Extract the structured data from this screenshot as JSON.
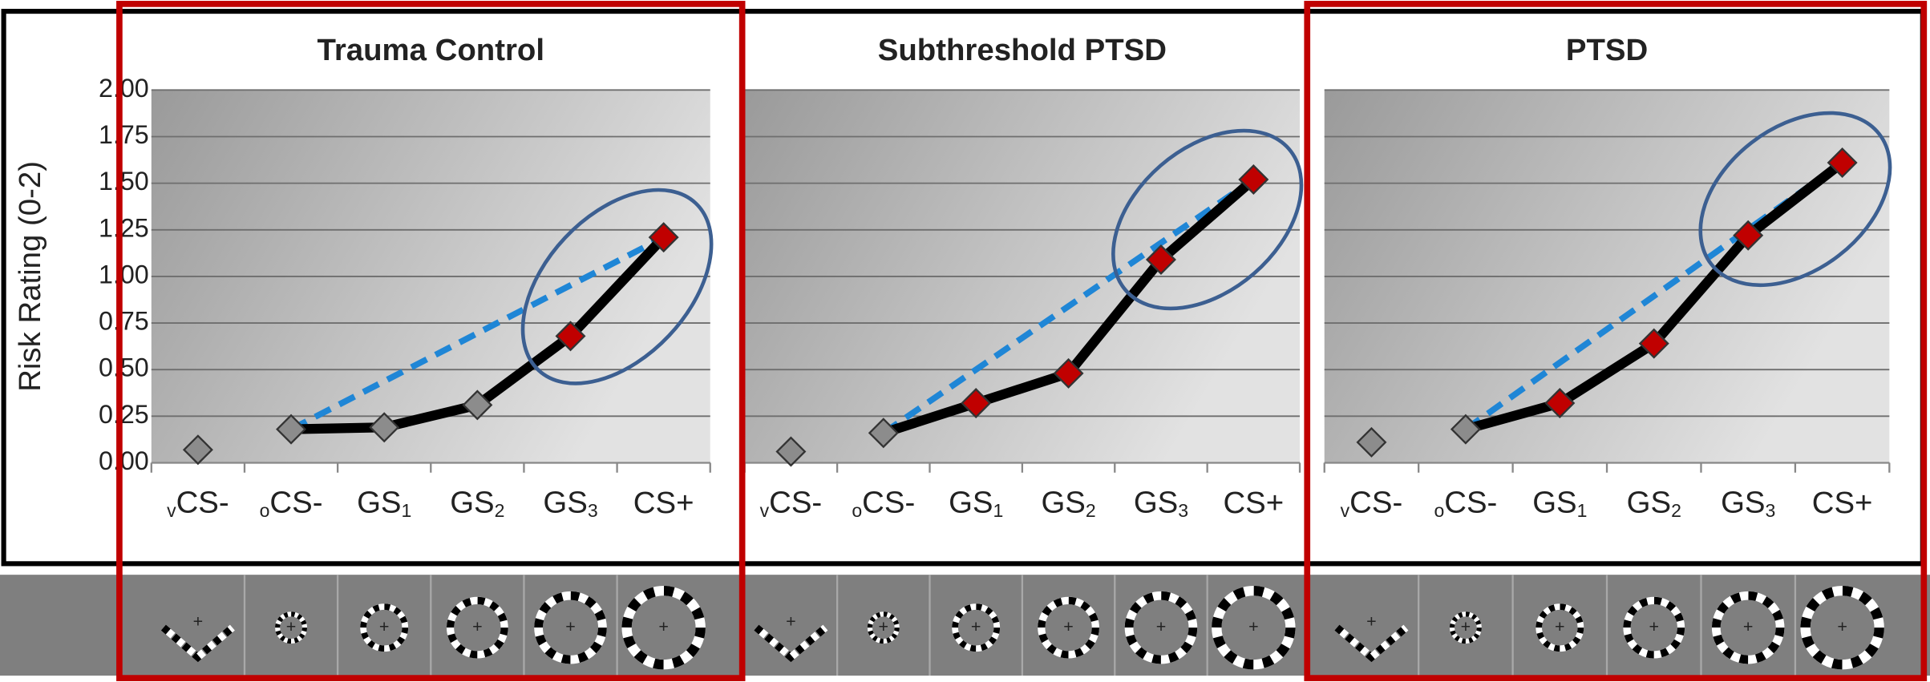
{
  "chart_data": [
    {
      "type": "line",
      "title": "Trauma Control",
      "y_label": "Risk Rating (0-2)",
      "categories": [
        "vCS-",
        "oCS-",
        "GS1",
        "GS2",
        "GS3",
        "CS+"
      ],
      "values": [
        0.07,
        0.18,
        0.19,
        0.31,
        0.68,
        1.21
      ],
      "marker_colors": [
        "#8c8c8c",
        "#8c8c8c",
        "#8c8c8c",
        "#8c8c8c",
        "#c00000",
        "#c00000"
      ],
      "color": "#000000",
      "line_from": 1,
      "dashed_line": {
        "from": 1,
        "to": 5,
        "color": "#1f86d6"
      },
      "highlight": [
        4,
        5
      ],
      "highlight_color": "#3c5f91",
      "ylim": [
        0,
        2
      ],
      "yticks": [
        {
          "value": 0,
          "label": "0.00"
        },
        {
          "value": 0.25,
          "label": "0.25"
        },
        {
          "value": 0.5,
          "label": "0.50"
        },
        {
          "value": 0.75,
          "label": "0.75"
        },
        {
          "value": 1,
          "label": "1.00"
        },
        {
          "value": 1.25,
          "label": "1.25"
        },
        {
          "value": 1.5,
          "label": "1.50"
        },
        {
          "value": 1.75,
          "label": "1.75"
        },
        {
          "value": 2,
          "label": "2.00"
        }
      ],
      "grid": true
    },
    {
      "type": "line",
      "title": "Subthreshold PTSD",
      "categories": [
        "vCS-",
        "oCS-",
        "GS1",
        "GS2",
        "GS3",
        "CS+"
      ],
      "values": [
        0.06,
        0.16,
        0.32,
        0.48,
        1.09,
        1.52
      ],
      "marker_colors": [
        "#8c8c8c",
        "#8c8c8c",
        "#c00000",
        "#c00000",
        "#c00000",
        "#c00000"
      ],
      "color": "#000000",
      "line_from": 1,
      "dashed_line": {
        "from": 1,
        "to": 5,
        "color": "#1f86d6"
      },
      "highlight": [
        4,
        5
      ],
      "highlight_color": "#3c5f91",
      "ylim": [
        0,
        2
      ],
      "yticks": [
        0,
        0.25,
        0.5,
        0.75,
        1,
        1.25,
        1.5,
        1.75,
        2
      ],
      "grid": true
    },
    {
      "type": "line",
      "title": "PTSD",
      "categories": [
        "vCS-",
        "oCS-",
        "GS1",
        "GS2",
        "GS3",
        "CS+"
      ],
      "values": [
        0.11,
        0.18,
        0.32,
        0.64,
        1.22,
        1.61
      ],
      "marker_colors": [
        "#8c8c8c",
        "#8c8c8c",
        "#c00000",
        "#c00000",
        "#c00000",
        "#c00000"
      ],
      "color": "#000000",
      "line_from": 1,
      "dashed_line": {
        "from": 1,
        "to": 5,
        "color": "#1f86d6"
      },
      "highlight": [
        4,
        5
      ],
      "highlight_color": "#3c5f91",
      "ylim": [
        0,
        2
      ],
      "yticks": [
        0,
        0.25,
        0.5,
        0.75,
        1,
        1.25,
        1.5,
        1.75,
        2
      ],
      "grid": true
    }
  ]
}
